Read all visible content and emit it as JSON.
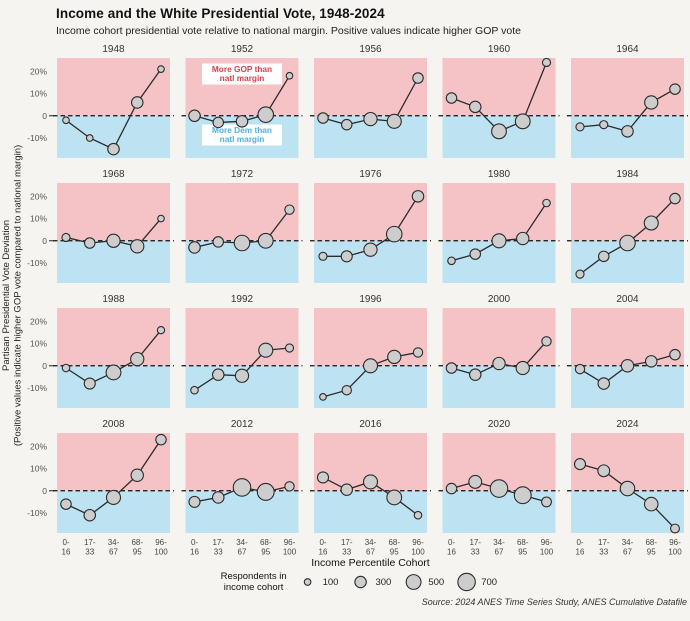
{
  "title": "Income and the White Presidential Vote, 1948-2024",
  "subtitle": "Income cohort presidential vote relative to national margin. Positive values indicate higher GOP vote",
  "y_axis_label_line1": "Partisan Presidential Vote Deviation",
  "y_axis_label_line2": "(Positive values indicate higher GOP vote compared to national margin)",
  "x_axis_label": "Income Percentile Cohort",
  "annotations": {
    "gop_line1": "More GOP than",
    "gop_line2": "natl margin",
    "dem_line1": "More Dem than",
    "dem_line2": "natl margin"
  },
  "legend": {
    "title_line1": "Respondents in",
    "title_line2": "income cohort",
    "sizes": [
      100,
      300,
      500,
      700
    ]
  },
  "source": "Source: 2024 ANES Time Series Study, ANES Cumulative Datafile",
  "colors": {
    "background": "#f5f4f0",
    "gop_bg": "#f5c3c6",
    "dem_bg": "#bde3f3",
    "gop_text": "#d6404d",
    "dem_text": "#4fb3da",
    "line": "#2b2b2b",
    "marker_fill": "#cdcdcd",
    "zero_line": "#111111"
  },
  "chart_data": {
    "type": "line",
    "small_multiples": true,
    "grid": {
      "rows": 4,
      "cols": 5
    },
    "categories": [
      "0-16",
      "17-33",
      "34-67",
      "68-95",
      "96-100"
    ],
    "x_tick_lines": [
      [
        "0-",
        "16"
      ],
      [
        "17-",
        "33"
      ],
      [
        "34-",
        "67"
      ],
      [
        "68-",
        "95"
      ],
      [
        "96-",
        "100"
      ]
    ],
    "y_ticks": [
      20,
      10,
      0,
      -10
    ],
    "y_tick_labels": [
      "20%",
      "10%",
      "0",
      "-10%"
    ],
    "ylim": [
      -19,
      26
    ],
    "value_unit": "percent deviation from national margin",
    "size_unit": "respondents in income cohort",
    "panels": [
      {
        "year": "1948",
        "values": [
          -2,
          -10,
          -15,
          6,
          21
        ],
        "respondents": [
          100,
          100,
          300,
          300,
          100
        ]
      },
      {
        "year": "1952",
        "values": [
          0,
          -3,
          -2.5,
          0.5,
          18
        ],
        "respondents": [
          300,
          250,
          300,
          550,
          100
        ]
      },
      {
        "year": "1956",
        "values": [
          -1,
          -4,
          -1.5,
          -2.5,
          17
        ],
        "respondents": [
          250,
          250,
          400,
          450,
          250
        ]
      },
      {
        "year": "1960",
        "values": [
          8,
          4,
          -7,
          -2.5,
          24
        ],
        "respondents": [
          250,
          300,
          500,
          500,
          150
        ]
      },
      {
        "year": "1964",
        "values": [
          -5,
          -4,
          -7,
          6,
          12
        ],
        "respondents": [
          150,
          150,
          300,
          400,
          250
        ]
      },
      {
        "year": "1968",
        "values": [
          1.5,
          -1,
          0,
          -2.5,
          10
        ],
        "respondents": [
          150,
          250,
          400,
          400,
          100
        ]
      },
      {
        "year": "1972",
        "values": [
          -3,
          -0.5,
          -1,
          0,
          14
        ],
        "respondents": [
          300,
          250,
          550,
          500,
          200
        ]
      },
      {
        "year": "1976",
        "values": [
          -7,
          -7,
          -4,
          3,
          20
        ],
        "respondents": [
          150,
          280,
          400,
          550,
          300
        ]
      },
      {
        "year": "1980",
        "values": [
          -9,
          -6,
          0,
          1,
          17
        ],
        "respondents": [
          130,
          250,
          450,
          350,
          130
        ]
      },
      {
        "year": "1984",
        "values": [
          -15,
          -7,
          -1,
          8,
          19
        ],
        "respondents": [
          150,
          250,
          550,
          450,
          250
        ]
      },
      {
        "year": "1988",
        "values": [
          -1,
          -8,
          -3,
          3,
          16
        ],
        "respondents": [
          130,
          280,
          500,
          400,
          120
        ]
      },
      {
        "year": "1992",
        "values": [
          -11,
          -4,
          -4.5,
          7,
          8
        ],
        "respondents": [
          130,
          300,
          400,
          450,
          150
        ]
      },
      {
        "year": "1996",
        "values": [
          -14,
          -11,
          0,
          4,
          6
        ],
        "respondents": [
          100,
          200,
          450,
          400,
          200
        ]
      },
      {
        "year": "2000",
        "values": [
          -1,
          -4,
          1,
          -1,
          11
        ],
        "respondents": [
          250,
          300,
          350,
          400,
          200
        ]
      },
      {
        "year": "2004",
        "values": [
          -1.5,
          -8,
          0,
          2,
          5
        ],
        "respondents": [
          200,
          300,
          350,
          300,
          250
        ]
      },
      {
        "year": "2008",
        "values": [
          -6,
          -11,
          -3,
          7,
          23
        ],
        "respondents": [
          250,
          300,
          450,
          350,
          250
        ]
      },
      {
        "year": "2012",
        "values": [
          -5,
          -3,
          1.5,
          -0.5,
          2
        ],
        "respondents": [
          280,
          300,
          700,
          650,
          200
        ]
      },
      {
        "year": "2016",
        "values": [
          6,
          0.5,
          4,
          -3,
          -11
        ],
        "respondents": [
          280,
          300,
          450,
          500,
          130
        ]
      },
      {
        "year": "2020",
        "values": [
          1,
          4,
          1,
          -2,
          -5
        ],
        "respondents": [
          250,
          380,
          700,
          650,
          220
        ]
      },
      {
        "year": "2024",
        "values": [
          12,
          9,
          1,
          -6,
          -17
        ],
        "respondents": [
          280,
          320,
          480,
          420,
          180
        ]
      }
    ]
  }
}
